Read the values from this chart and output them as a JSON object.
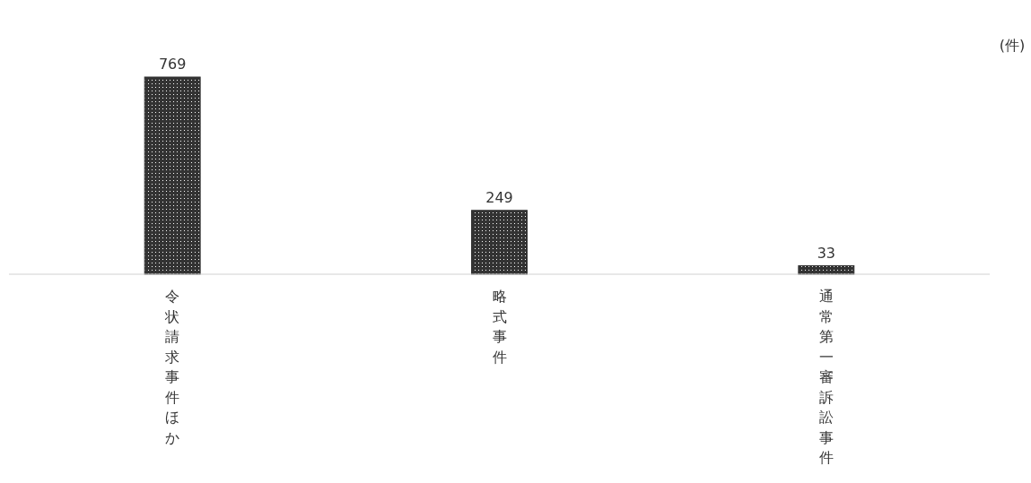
{
  "chart_data": {
    "type": "bar",
    "ylabel": "(件)",
    "categories": [
      "令状請求事件ほか",
      "略式事件",
      "通常第一審訴訟事件"
    ],
    "values": [
      769,
      249,
      33
    ],
    "color": "#333333",
    "data_labels": true
  }
}
